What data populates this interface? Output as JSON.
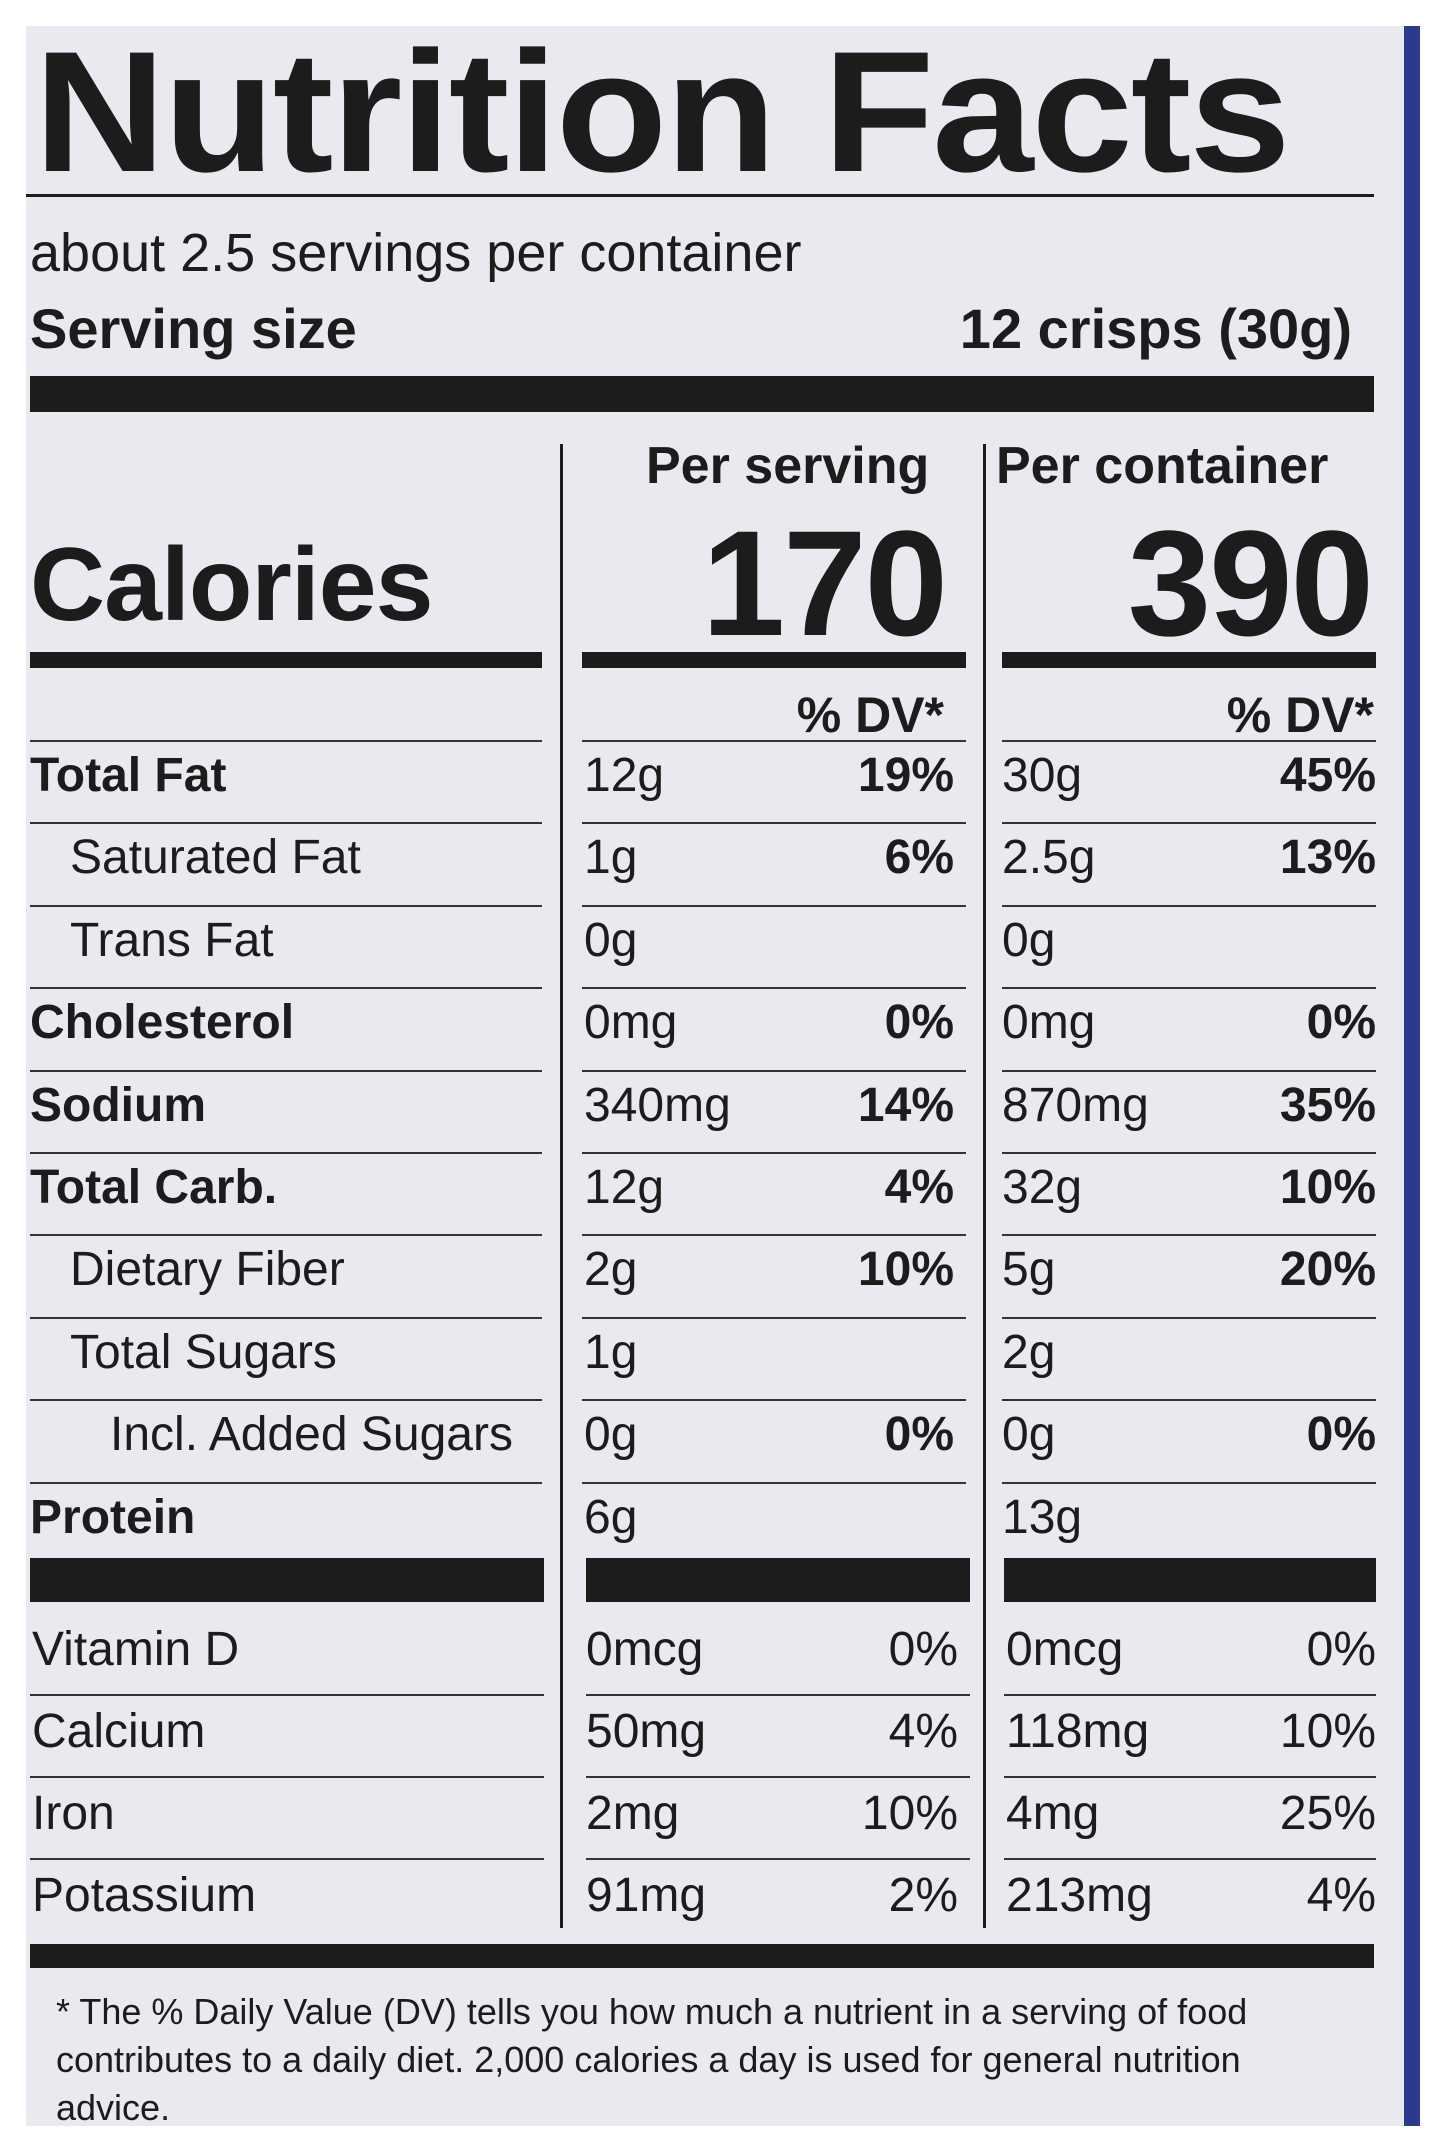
{
  "title": "Nutrition Facts",
  "servings_per_container": "about 2.5 servings per container",
  "serving_size": {
    "label": "Serving size",
    "value": "12 crisps (30g)"
  },
  "columns": {
    "per_serving": "Per serving",
    "per_container": "Per container"
  },
  "calories": {
    "label": "Calories",
    "per_serving": "170",
    "per_container": "390"
  },
  "dv_header": "% DV*",
  "nutrients": [
    {
      "label": "Total Fat",
      "bold": true,
      "indent": 0,
      "s_amt": "12g",
      "s_dv": "19%",
      "c_amt": "30g",
      "c_dv": "45%"
    },
    {
      "label": "Saturated Fat",
      "bold": false,
      "indent": 1,
      "s_amt": "1g",
      "s_dv": "6%",
      "c_amt": "2.5g",
      "c_dv": "13%"
    },
    {
      "label": "Trans Fat",
      "bold": false,
      "indent": 1,
      "s_amt": "0g",
      "s_dv": "",
      "c_amt": "0g",
      "c_dv": ""
    },
    {
      "label": "Cholesterol",
      "bold": true,
      "indent": 0,
      "s_amt": "0mg",
      "s_dv": "0%",
      "c_amt": "0mg",
      "c_dv": "0%"
    },
    {
      "label": "Sodium",
      "bold": true,
      "indent": 0,
      "s_amt": "340mg",
      "s_dv": "14%",
      "c_amt": "870mg",
      "c_dv": "35%"
    },
    {
      "label": "Total Carb.",
      "bold": true,
      "indent": 0,
      "s_amt": "12g",
      "s_dv": "4%",
      "c_amt": "32g",
      "c_dv": "10%"
    },
    {
      "label": "Dietary Fiber",
      "bold": false,
      "indent": 1,
      "s_amt": "2g",
      "s_dv": "10%",
      "c_amt": "5g",
      "c_dv": "20%"
    },
    {
      "label": "Total Sugars",
      "bold": false,
      "indent": 1,
      "s_amt": "1g",
      "s_dv": "",
      "c_amt": "2g",
      "c_dv": ""
    },
    {
      "label": "Incl. Added Sugars",
      "bold": false,
      "indent": 2,
      "s_amt": "0g",
      "s_dv": "0%",
      "c_amt": "0g",
      "c_dv": "0%"
    },
    {
      "label": "Protein",
      "bold": true,
      "indent": 0,
      "s_amt": "6g",
      "s_dv": "",
      "c_amt": "13g",
      "c_dv": ""
    }
  ],
  "vitamins": [
    {
      "label": "Vitamin D",
      "s_amt": "0mcg",
      "s_dv": "0%",
      "c_amt": "0mcg",
      "c_dv": "0%"
    },
    {
      "label": "Calcium",
      "s_amt": "50mg",
      "s_dv": "4%",
      "c_amt": "118mg",
      "c_dv": "10%"
    },
    {
      "label": "Iron",
      "s_amt": "2mg",
      "s_dv": "10%",
      "c_amt": "4mg",
      "c_dv": "25%"
    },
    {
      "label": "Potassium",
      "s_amt": "91mg",
      "s_dv": "2%",
      "c_amt": "213mg",
      "c_dv": "4%"
    }
  ],
  "footnote": "* The % Daily Value (DV) tells you how much a nutrient in a serving of food contributes to a daily diet. 2,000 calories a day is used for general nutrition advice."
}
